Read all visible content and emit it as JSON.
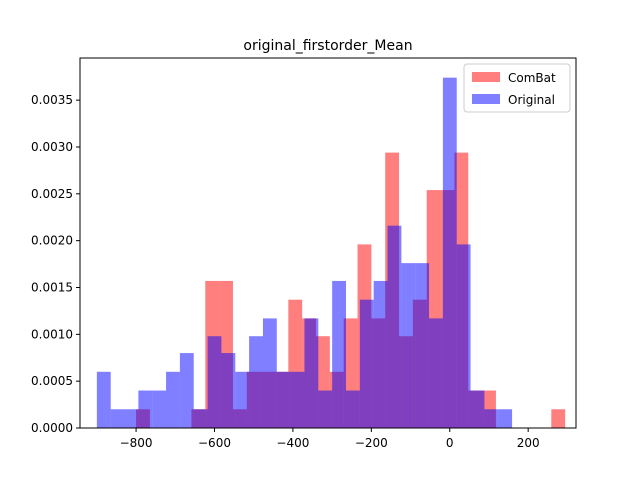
{
  "chart_data": {
    "type": "bar",
    "title": "original_firstorder_Mean",
    "xlabel": "",
    "ylabel": "",
    "xlim": [
      -943,
      322
    ],
    "ylim": [
      0,
      0.00395
    ],
    "xticks": [
      -800,
      -600,
      -400,
      -200,
      0,
      200
    ],
    "xtick_labels": [
      "−800",
      "−600",
      "−400",
      "−200",
      "0",
      "200"
    ],
    "yticks": [
      0.0,
      0.0005,
      0.001,
      0.0015,
      0.002,
      0.0025,
      0.003,
      0.0035
    ],
    "ytick_labels": [
      "0.0000",
      "0.0005",
      "0.0010",
      "0.0015",
      "0.0020",
      "0.0025",
      "0.0030",
      "0.0035"
    ],
    "grid": false,
    "legend_position": "top-right",
    "series": [
      {
        "name": "ComBat",
        "color": "#ff0000",
        "alpha": 0.5,
        "bin_start": -800,
        "bin_width": 35.3,
        "values": [
          0.0002,
          0,
          0,
          0,
          0.0002,
          0.00157,
          0.00157,
          0.0002,
          0.0006,
          0.0006,
          0.0006,
          0.00137,
          0.00117,
          0.00098,
          0.0006,
          0.00117,
          0.00196,
          0.00117,
          0.00294,
          0.00098,
          0.00137,
          0.00254,
          0.00254,
          0.00294,
          0.0004,
          0.0004,
          0,
          0,
          0,
          0,
          0.0002
        ]
      },
      {
        "name": "Original",
        "color": "#0000ff",
        "alpha": 0.5,
        "bin_start": -900,
        "bin_width": 35.3,
        "values": [
          0.0006,
          0.0002,
          0.0002,
          0.0004,
          0.0004,
          0.0006,
          0.0008,
          0.0002,
          0.00098,
          0.0008,
          0.0006,
          0.00098,
          0.00117,
          0.0006,
          0.0006,
          0.00117,
          0.0004,
          0.00157,
          0.0004,
          0.00137,
          0.00157,
          0.00216,
          0.00176,
          0.00176,
          0.00117,
          0.00374,
          0.00196,
          0.0004,
          0.0002,
          0.0002
        ]
      }
    ]
  }
}
